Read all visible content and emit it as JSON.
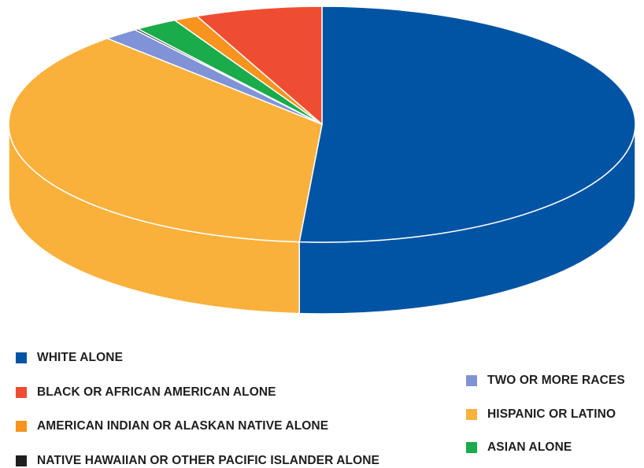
{
  "chart_data": {
    "type": "pie",
    "title": "",
    "slices": [
      {
        "label": "WHITE ALONE",
        "value": 53.2,
        "color": "#0154a4"
      },
      {
        "label": "HISPANIC OR LATINO",
        "value": 38.3,
        "color": "#f9b13c"
      },
      {
        "label": "TWO OR MORE RACES",
        "value": 1.9,
        "color": "#7f93d6"
      },
      {
        "label": "NATIVE HAWAIIAN OR OTHER PACIFIC ISLANDER ALONE",
        "value": 0.2,
        "color": "#1f1f1f"
      },
      {
        "label": "ASIAN ALONE",
        "value": 2.3,
        "color": "#1aab4b"
      },
      {
        "label": "AMERICAN INDIAN OR ALASKAN NATIVE ALONE",
        "value": 1.3,
        "color": "#f7931e"
      },
      {
        "label": "BLACK OR AFRICAN AMERICAN ALONE",
        "value": 6.8,
        "color": "#ef4d31"
      }
    ],
    "legend": {
      "placement": "bottom",
      "left_column": [
        "WHITE ALONE",
        "BLACK OR AFRICAN AMERICAN ALONE",
        "AMERICAN INDIAN OR ALASKAN NATIVE ALONE",
        "NATIVE HAWAIIAN OR OTHER PACIFIC ISLANDER ALONE"
      ],
      "right_column": [
        "TWO OR MORE RACES",
        "HISPANIC OR LATINO",
        "ASIAN ALONE"
      ]
    },
    "style": "3d-tilted"
  }
}
